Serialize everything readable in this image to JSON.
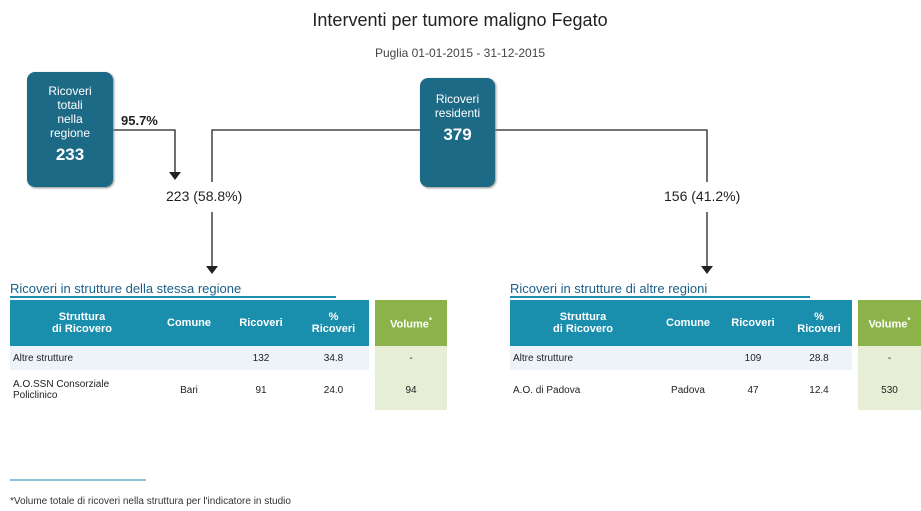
{
  "title": "Interventi per tumore maligno Fegato",
  "subtitle": "Puglia 01-01-2015 - 31-12-2015",
  "box_total": {
    "label": [
      "Ricoveri",
      "totali",
      "nella",
      "regione"
    ],
    "value": "233"
  },
  "box_total_share": "95.7%",
  "box_residents": {
    "label": [
      "Ricoveri",
      "residenti"
    ],
    "value": "379"
  },
  "branch_left": "223 (58.8%)",
  "branch_right": "156 (41.2%)",
  "tables": [
    {
      "title": "Ricoveri in strutture della stessa regione",
      "headers": [
        [
          "Struttura",
          "di Ricovero"
        ],
        [
          "Comune"
        ],
        [
          "Ricoveri"
        ],
        [
          "%",
          "Ricoveri"
        ],
        [
          "Volume"
        ]
      ],
      "note_mark": "*",
      "rows": [
        [
          "Altre strutture",
          "",
          "132",
          "34.8",
          "-"
        ],
        [
          "A.O.SSN Consorziale Policlinico",
          "Bari",
          "91",
          "24.0",
          "94"
        ]
      ]
    },
    {
      "title": "Ricoveri in strutture di altre regioni",
      "headers": [
        [
          "Struttura",
          "di Ricovero"
        ],
        [
          "Comune"
        ],
        [
          "Ricoveri"
        ],
        [
          "%",
          "Ricoveri"
        ],
        [
          "Volume"
        ]
      ],
      "note_mark": "*",
      "rows": [
        [
          "Altre strutture",
          "",
          "109",
          "28.8",
          "-"
        ],
        [
          "A.O. di Padova",
          "Padova",
          "47",
          "12.4",
          "530"
        ]
      ]
    }
  ],
  "footnote": "*Volume totale di ricoveri nella struttura per l'indicatore in studio"
}
